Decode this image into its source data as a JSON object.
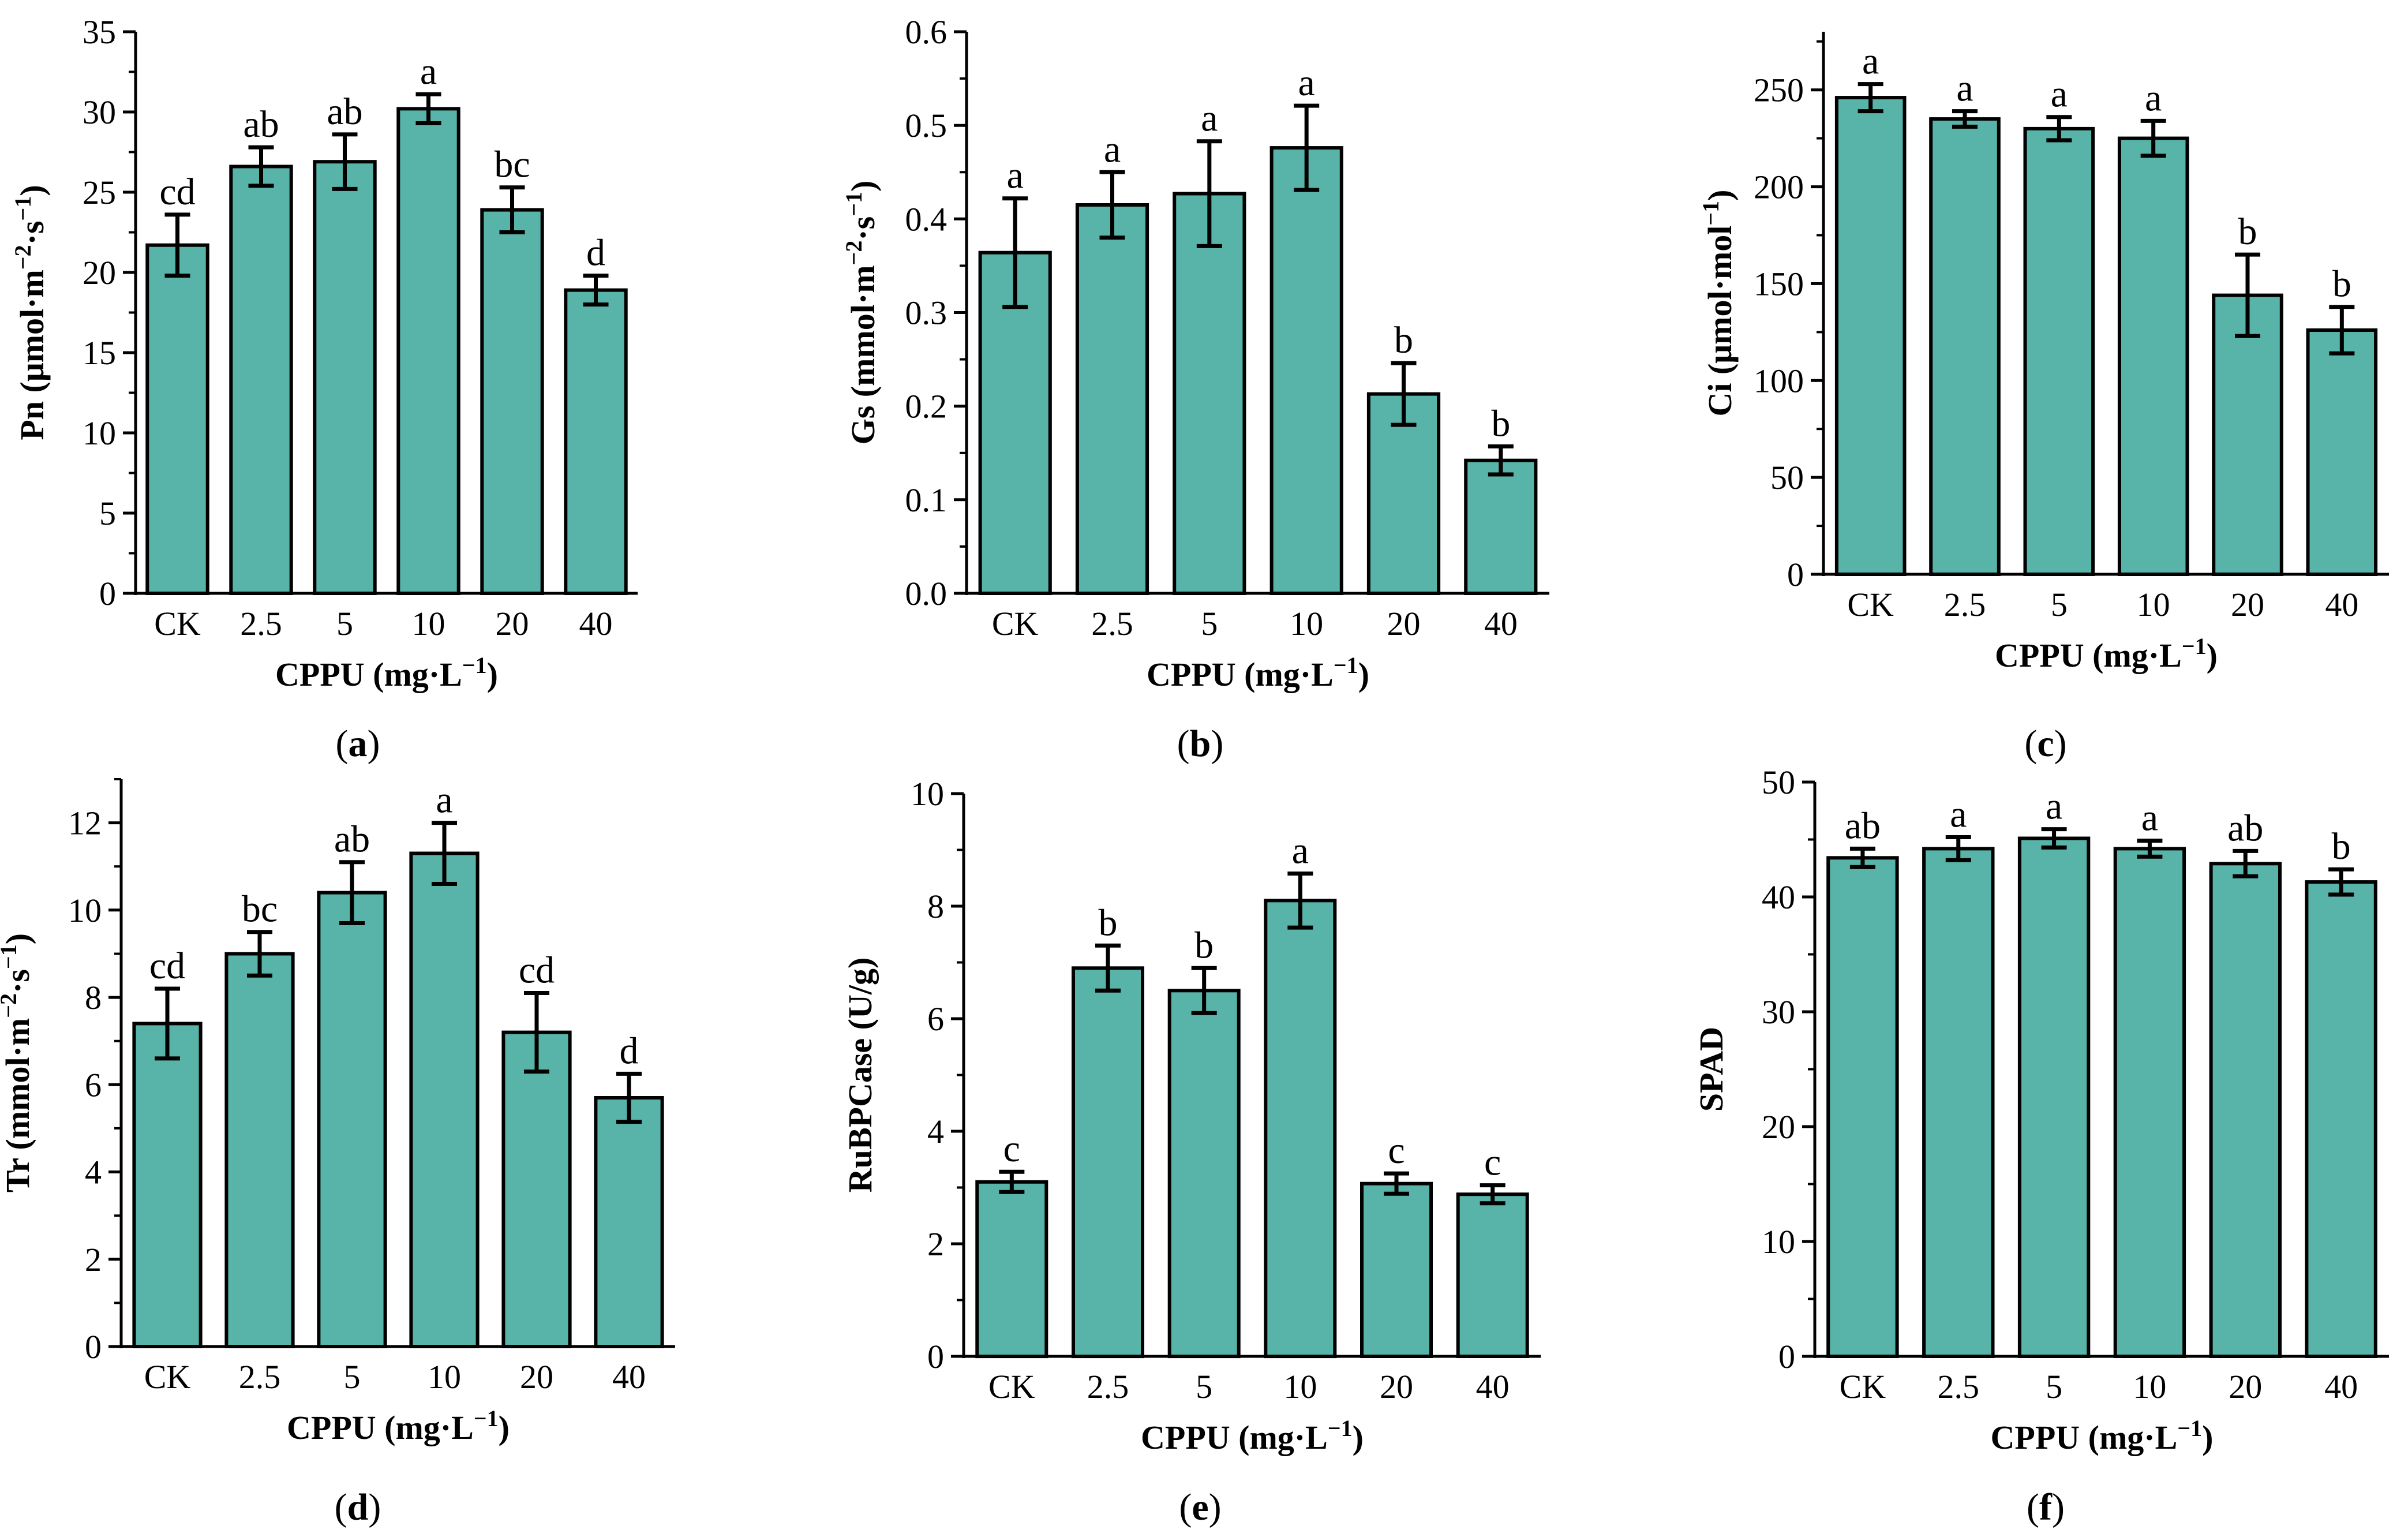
{
  "colors": {
    "bar_fill": "#58b3a9",
    "bar_stroke": "#000000",
    "axis": "#000000",
    "background": "#ffffff"
  },
  "chart_data": [
    {
      "id": "a",
      "type": "bar",
      "panel_label": {
        "open": "(",
        "letter": "a",
        "close": ")"
      },
      "ylabel": {
        "base": "Pn (μmol·m",
        "sup1": "−2",
        "mid": "·s",
        "sup2": "−1",
        "end": ")"
      },
      "xlabel": {
        "base": "CPPU (mg·L",
        "sup": "−1",
        "end": ")"
      },
      "categories": [
        "CK",
        "2.5",
        "5",
        "10",
        "20",
        "40"
      ],
      "values": [
        21.7,
        26.6,
        26.9,
        30.2,
        23.9,
        18.9
      ],
      "errors": [
        1.9,
        1.2,
        1.7,
        0.9,
        1.4,
        0.9
      ],
      "significance": [
        "cd",
        "ab",
        "ab",
        "a",
        "bc",
        "d"
      ],
      "ylim": [
        0,
        35
      ],
      "yticks": [
        0,
        5,
        10,
        15,
        20,
        25,
        30,
        35
      ],
      "minor_ticks": true
    },
    {
      "id": "b",
      "type": "bar",
      "panel_label": {
        "open": "(",
        "letter": "b",
        "close": ")"
      },
      "ylabel": {
        "base": "Gs (mmol·m",
        "sup1": "−2",
        "mid": "·s",
        "sup2": "−1",
        "end": ")"
      },
      "xlabel": {
        "base": "CPPU (mg·L",
        "sup": "−1",
        "end": ")"
      },
      "categories": [
        "CK",
        "2.5",
        "5",
        "10",
        "20",
        "40"
      ],
      "values": [
        0.364,
        0.415,
        0.427,
        0.476,
        0.213,
        0.142
      ],
      "errors": [
        0.058,
        0.035,
        0.056,
        0.045,
        0.033,
        0.015
      ],
      "significance": [
        "a",
        "a",
        "a",
        "a",
        "b",
        "b"
      ],
      "ylim": [
        0,
        0.6
      ],
      "yticks": [
        "0.0",
        "0.1",
        "0.2",
        "0.3",
        "0.4",
        "0.5",
        "0.6"
      ],
      "minor_ticks": true
    },
    {
      "id": "c",
      "type": "bar",
      "panel_label": {
        "open": "(",
        "letter": "c",
        "close": ")"
      },
      "ylabel": {
        "base": "Ci (μmol·mol",
        "sup1": "−1",
        "mid": "",
        "sup2": "",
        "end": ")"
      },
      "xlabel": {
        "base": "CPPU (mg·L",
        "sup": "−1",
        "end": ")"
      },
      "categories": [
        "CK",
        "2.5",
        "5",
        "10",
        "20",
        "40"
      ],
      "values": [
        246,
        235,
        230,
        225,
        144,
        126
      ],
      "errors": [
        7,
        4,
        6,
        9,
        21,
        12
      ],
      "significance": [
        "a",
        "a",
        "a",
        "a",
        "b",
        "b"
      ],
      "ylim": [
        0,
        280
      ],
      "yticks": [
        0,
        50,
        100,
        150,
        200,
        250
      ],
      "minor_ticks": true
    },
    {
      "id": "d",
      "type": "bar",
      "panel_label": {
        "open": "(",
        "letter": "d",
        "close": ")"
      },
      "ylabel": {
        "base": "Tr (mmol·m",
        "sup1": "−2",
        "mid": "·s",
        "sup2": "−1",
        "end": ")"
      },
      "xlabel": {
        "base": "CPPU (mg·L",
        "sup": "−1",
        "end": ")"
      },
      "categories": [
        "CK",
        "2.5",
        "5",
        "10",
        "20",
        "40"
      ],
      "values": [
        7.4,
        9.0,
        10.4,
        11.3,
        7.2,
        5.7
      ],
      "errors": [
        0.8,
        0.5,
        0.7,
        0.7,
        0.9,
        0.55
      ],
      "significance": [
        "cd",
        "bc",
        "ab",
        "a",
        "cd",
        "d"
      ],
      "ylim": [
        0,
        13
      ],
      "yticks": [
        0,
        2,
        4,
        6,
        8,
        10,
        12
      ],
      "minor_ticks": true
    },
    {
      "id": "e",
      "type": "bar",
      "panel_label": {
        "open": "(",
        "letter": "e",
        "close": ")"
      },
      "ylabel": {
        "base": "RuBPCase (U/g)",
        "sup1": "",
        "mid": "",
        "sup2": "",
        "end": ""
      },
      "xlabel": {
        "base": "CPPU (mg·L",
        "sup": "−1",
        "end": ")"
      },
      "categories": [
        "CK",
        "2.5",
        "5",
        "10",
        "20",
        "40"
      ],
      "values": [
        3.1,
        6.9,
        6.5,
        8.1,
        3.07,
        2.88
      ],
      "errors": [
        0.18,
        0.4,
        0.4,
        0.48,
        0.18,
        0.16
      ],
      "significance": [
        "c",
        "b",
        "b",
        "a",
        "c",
        "c"
      ],
      "ylim": [
        0,
        10
      ],
      "yticks": [
        0,
        2,
        4,
        6,
        8,
        10
      ],
      "minor_ticks": true
    },
    {
      "id": "f",
      "type": "bar",
      "panel_label": {
        "open": "(",
        "letter": "f",
        "close": ")"
      },
      "ylabel": {
        "base": "SPAD",
        "sup1": "",
        "mid": "",
        "sup2": "",
        "end": ""
      },
      "xlabel": {
        "base": "CPPU (mg·L",
        "sup": "−1",
        "end": ")"
      },
      "categories": [
        "CK",
        "2.5",
        "5",
        "10",
        "20",
        "40"
      ],
      "values": [
        43.4,
        44.2,
        45.1,
        44.2,
        42.9,
        41.3
      ],
      "errors": [
        0.8,
        1.0,
        0.8,
        0.7,
        1.1,
        1.1
      ],
      "significance": [
        "ab",
        "a",
        "a",
        "a",
        "ab",
        "b"
      ],
      "ylim": [
        0,
        50
      ],
      "yticks": [
        0,
        10,
        20,
        30,
        40,
        50
      ],
      "minor_ticks": true
    }
  ]
}
